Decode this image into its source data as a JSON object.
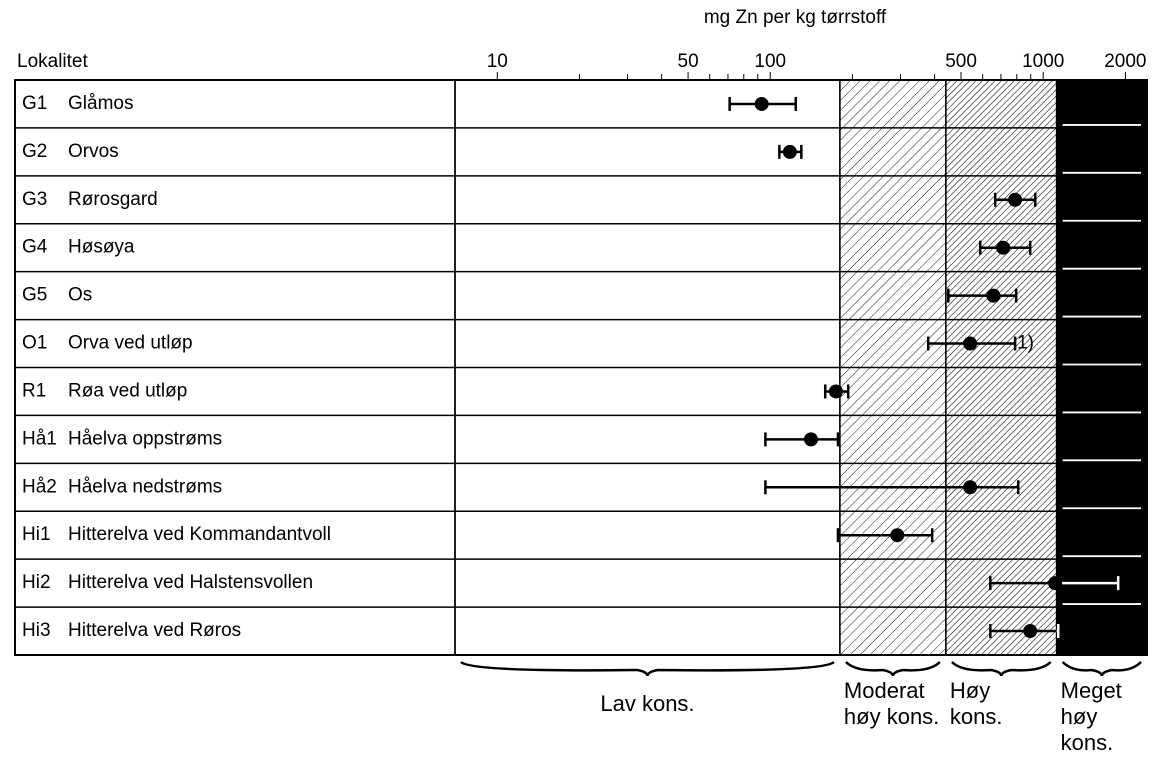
{
  "chart_data": {
    "type": "errorbar",
    "title": "mg Zn per kg tørrstoff",
    "row_header": "Lokalitet",
    "codes": [
      "G1",
      "G2",
      "G3",
      "G4",
      "G5",
      "O1",
      "R1",
      "Hå1",
      "Hå2",
      "Hi1",
      "Hi2",
      "Hi3"
    ],
    "categories": [
      "Glåmos",
      "Orvos",
      "Rørosgard",
      "Høsøya",
      "Os",
      "Orva ved utløp",
      "Røa ved utløp",
      "Håelva oppstrøms",
      "Håelva nedstrøms",
      "Hitterelva ved Kommandantvoll",
      "Hitterelva ved Halstensvollen",
      "Hitterelva ved Røros"
    ],
    "values": [
      93,
      118,
      789,
      713,
      657,
      540,
      174,
      141,
      540,
      292,
      1106,
      896
    ],
    "low": [
      71,
      108,
      667,
      588,
      449,
      379,
      159,
      96,
      96,
      177,
      640,
      640
    ],
    "high": [
      124,
      130,
      935,
      896,
      796,
      789,
      193,
      177,
      810,
      392,
      1882,
      1135
    ],
    "xscale": "log",
    "xlim": [
      7,
      2400
    ],
    "xticks": [
      10,
      50,
      100,
      500,
      1000,
      2000
    ],
    "minor_xticks": [
      20,
      30,
      40,
      60,
      70,
      80,
      90,
      200,
      300,
      400,
      600,
      700,
      800,
      900
    ],
    "class_limits": [
      180,
      440,
      1120
    ],
    "band_labels": [
      [
        "Lav kons."
      ],
      [
        "Moderat",
        "høy kons."
      ],
      [
        "Høy",
        "kons."
      ],
      [
        "Meget",
        "høy",
        "kons."
      ]
    ],
    "annotation": {
      "row": 5,
      "text": "1)"
    }
  }
}
